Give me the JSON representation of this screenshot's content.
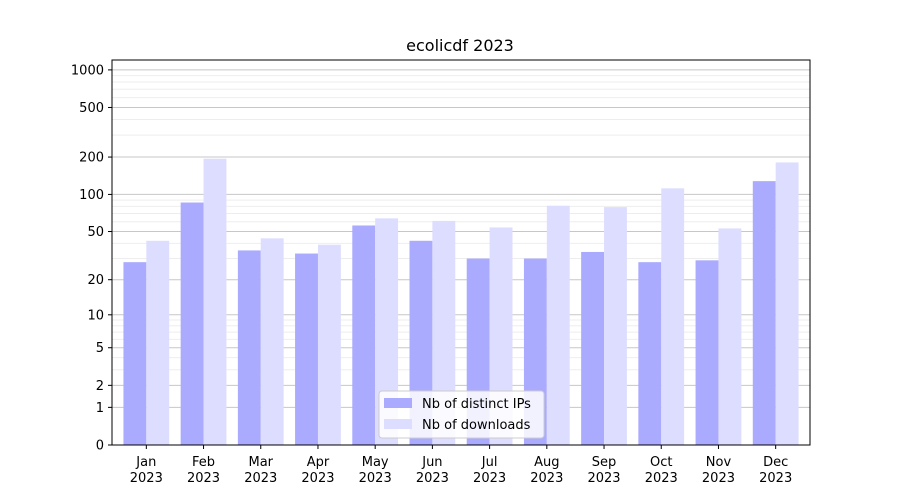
{
  "chart_data": {
    "type": "bar",
    "title": "ecolicdf 2023",
    "xlabel": "",
    "ylabel": "",
    "scale": "log(1+y)",
    "ylim": [
      0,
      1200
    ],
    "y_ticks": [
      {
        "value": 0,
        "label": "0"
      },
      {
        "value": 1,
        "label": "1"
      },
      {
        "value": 2,
        "label": "2"
      },
      {
        "value": 5,
        "label": "5"
      },
      {
        "value": 10,
        "label": "10"
      },
      {
        "value": 20,
        "label": "20"
      },
      {
        "value": 50,
        "label": "50"
      },
      {
        "value": 100,
        "label": "100"
      },
      {
        "value": 200,
        "label": "200"
      },
      {
        "value": 500,
        "label": "500"
      },
      {
        "value": 1000,
        "label": "1000"
      }
    ],
    "categories": [
      [
        "Jan",
        "2023"
      ],
      [
        "Feb",
        "2023"
      ],
      [
        "Mar",
        "2023"
      ],
      [
        "Apr",
        "2023"
      ],
      [
        "May",
        "2023"
      ],
      [
        "Jun",
        "2023"
      ],
      [
        "Jul",
        "2023"
      ],
      [
        "Aug",
        "2023"
      ],
      [
        "Sep",
        "2023"
      ],
      [
        "Oct",
        "2023"
      ],
      [
        "Nov",
        "2023"
      ],
      [
        "Dec",
        "2023"
      ]
    ],
    "series": [
      {
        "name": "Nb of distinct IPs",
        "color": "#aaaaff",
        "values": [
          28,
          86,
          35,
          33,
          56,
          42,
          30,
          30,
          34,
          28,
          29,
          128
        ]
      },
      {
        "name": "Nb of downloads",
        "color": "#ddddff",
        "values": [
          42,
          194,
          44,
          39,
          64,
          61,
          54,
          81,
          79,
          112,
          53,
          181
        ]
      }
    ],
    "grid": true,
    "legend_position": "bottom-center"
  }
}
